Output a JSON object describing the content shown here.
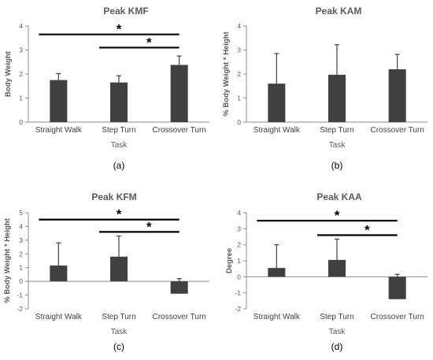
{
  "colors": {
    "bar": "#404040",
    "axis": "#8c8c8c",
    "sig": "#000000"
  },
  "chart_data": [
    {
      "type": "bar",
      "title": "Peak KMF",
      "xlabel": "Task",
      "ylabel": "Body Weight",
      "panel_label": "(a)",
      "categories": [
        "Straight Walk",
        "Step Turn",
        "Crossover Turn"
      ],
      "values": [
        1.75,
        1.65,
        2.38
      ],
      "error_plus": [
        0.27,
        0.28,
        0.37
      ],
      "ylim": [
        0,
        4
      ],
      "yticks": [
        "0",
        "1",
        "2",
        "3",
        "4"
      ],
      "significance": [
        {
          "from": 0,
          "to": 2,
          "label": "*",
          "y": 3.65
        },
        {
          "from": 1,
          "to": 2,
          "label": "*",
          "y": 3.1
        }
      ]
    },
    {
      "type": "bar",
      "title": "Peak KAM",
      "xlabel": "Task",
      "ylabel": "% Body Weight * Height",
      "panel_label": "(b)",
      "categories": [
        "Straight Walk",
        "Step Turn",
        "Crossover Turn"
      ],
      "values": [
        1.6,
        1.97,
        2.2
      ],
      "error_plus": [
        1.25,
        1.25,
        0.62
      ],
      "ylim": [
        0,
        4
      ],
      "yticks": [
        "0",
        "1",
        "2",
        "3",
        "4"
      ],
      "significance": []
    },
    {
      "type": "bar",
      "title": "Peak KFM",
      "xlabel": "Task",
      "ylabel": "% Body Weight * Height",
      "panel_label": "(c)",
      "categories": [
        "Straight Walk",
        "Step Turn",
        "Crossover Turn"
      ],
      "values": [
        1.15,
        1.8,
        -0.9
      ],
      "error_plus": [
        1.65,
        1.5,
        1.1
      ],
      "ylim": [
        -2,
        5
      ],
      "yticks": [
        "-2",
        "-1",
        "0",
        "1",
        "2",
        "3",
        "4",
        "5"
      ],
      "significance": [
        {
          "from": 0,
          "to": 2,
          "label": "*",
          "y": 4.5
        },
        {
          "from": 1,
          "to": 2,
          "label": "*",
          "y": 3.6
        }
      ]
    },
    {
      "type": "bar",
      "title": "Peak KAA",
      "xlabel": "Task",
      "ylabel": "Degree",
      "panel_label": "(d)",
      "categories": [
        "Straight Walk",
        "Step Turn",
        "Crossover Turn"
      ],
      "values": [
        0.55,
        1.05,
        -1.4
      ],
      "error_plus": [
        1.45,
        1.3,
        1.55
      ],
      "ylim": [
        -2,
        4
      ],
      "yticks": [
        "-2",
        "-1",
        "0",
        "1",
        "2",
        "3",
        "4"
      ],
      "significance": [
        {
          "from": 0,
          "to": 2,
          "label": "*",
          "y": 3.5
        },
        {
          "from": 1,
          "to": 2,
          "label": "*",
          "y": 2.6
        }
      ]
    }
  ]
}
